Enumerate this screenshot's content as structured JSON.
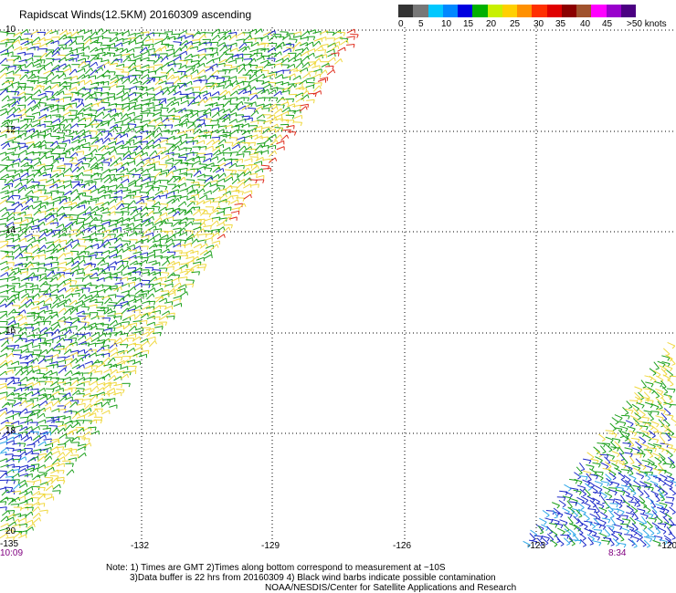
{
  "header": {
    "title": "Rapidscat Winds(12.5KM) 20160309 ascending"
  },
  "color_scale": {
    "labels": [
      "0",
      "5",
      "10",
      "15",
      "20",
      "25",
      "30",
      "35",
      "40",
      "45",
      ">50 knots"
    ],
    "colors": [
      "#333333",
      "#777777",
      "#00c8ff",
      "#0088ff",
      "#0000e0",
      "#00b000",
      "#c8f000",
      "#ffd000",
      "#ff9000",
      "#ff3000",
      "#e00000",
      "#8b0000",
      "#a0522d",
      "#ff00ff",
      "#9900cc",
      "#4b0082"
    ]
  },
  "map": {
    "lat_labels": [
      "10",
      "12",
      "14",
      "16",
      "18",
      "20"
    ],
    "lon_labels": [
      "-135",
      "-132",
      "-129",
      "-126",
      "-123",
      "-120"
    ],
    "time_labels": {
      "left": "10:09",
      "right": "8:34"
    },
    "swath_colors": {
      "green": "#1ca01c",
      "yellow": "#f0d840",
      "blue": "#1c28c8",
      "red": "#e03020",
      "cyan": "#30a8e8"
    }
  },
  "footer": {
    "line1": "Note: 1) Times are GMT 2)Times along bottom correspond to measurement at ~10S",
    "line2": "3)Data buffer is 22 hrs from 20160309 4) Black wind barbs indicate possible contamination",
    "line3": "NOAA/NESDIS/Center for Satellite Applications and Research"
  }
}
